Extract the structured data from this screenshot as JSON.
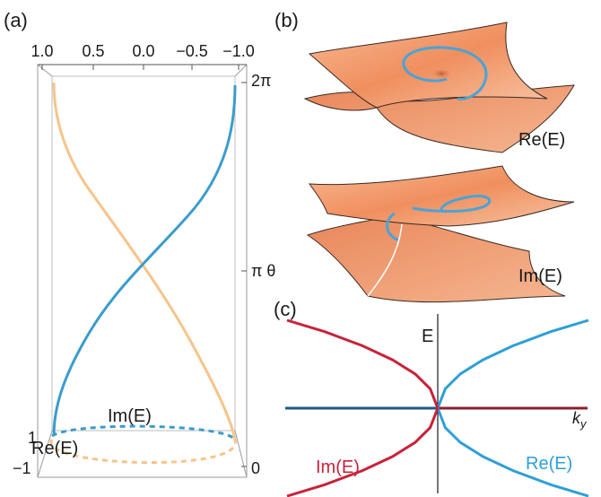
{
  "panels": {
    "a": {
      "label": "(a)",
      "top_ticks": [
        "1.0",
        "0.5",
        "0.0",
        "−0.5",
        "−1.0"
      ],
      "right_ticks": {
        "top": "2π",
        "middle": "π θ",
        "bottom": "0"
      },
      "left_ticks": {
        "upper": "1",
        "lower": "−1"
      },
      "labels": {
        "im": "Im(E)",
        "re": "Re(E)"
      },
      "colors": {
        "blue": "#3b9ccc",
        "orange": "#f6c48a"
      }
    },
    "b": {
      "label": "(b)",
      "top_surface_label": "Re(E)",
      "bottom_surface_label": "Im(E)",
      "colors": {
        "surface": "#f2a277",
        "edge": "#3a2a22",
        "loop": "#4aa3d6"
      }
    },
    "c": {
      "label": "(c)",
      "ylabel": "E",
      "xlabel": "k",
      "xlabel_sub": "y",
      "series_labels": {
        "re": "Re(E)",
        "im": "Im(E)"
      },
      "colors": {
        "re": "#2f9fd6",
        "im": "#c8223a",
        "re_axis": "#1f5a84",
        "im_axis": "#8a1f2d"
      }
    }
  },
  "chart_data": {
    "type": "line",
    "xlabel": "k_y",
    "ylabel": "E",
    "series": [
      {
        "name": "Re(E)",
        "x": [
          0,
          0.05,
          0.15,
          0.3,
          0.5,
          0.75,
          1.0
        ],
        "y": [
          0,
          0.22,
          0.39,
          0.55,
          0.71,
          0.87,
          1.0
        ]
      },
      {
        "name": "Im(E)",
        "x": [
          -1.0,
          -0.75,
          -0.5,
          -0.3,
          -0.15,
          -0.05,
          0
        ],
        "y": [
          1.0,
          0.87,
          0.71,
          0.55,
          0.39,
          0.22,
          0
        ]
      }
    ]
  }
}
